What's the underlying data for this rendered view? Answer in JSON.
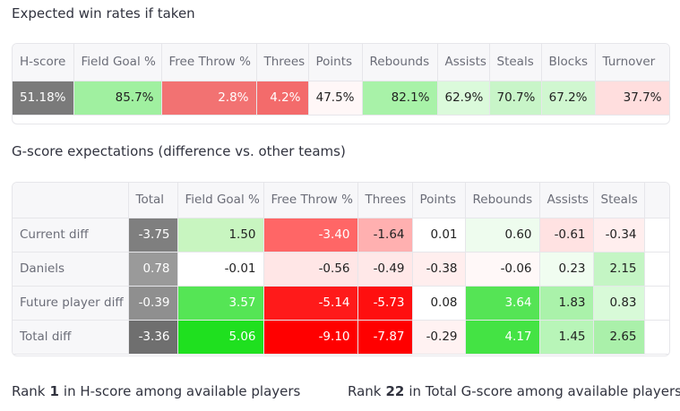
{
  "win_rates": {
    "title": "Expected win rates if taken",
    "headers": [
      "H-score",
      "Field Goal %",
      "Free Throw %",
      "Threes",
      "Points",
      "Rebounds",
      "Assists",
      "Steals",
      "Blocks",
      "Turnover"
    ],
    "row": [
      "51.18%",
      "85.7%",
      "2.8%",
      "4.2%",
      "47.5%",
      "82.1%",
      "62.9%",
      "70.7%",
      "67.2%",
      "37.7%"
    ],
    "colors": [
      "#7a7a7a",
      "#a0f0a0",
      "#f27272",
      "#f36b6b",
      "#fff7f7",
      "#a8f2a8",
      "#dbfadb",
      "#c8f5c8",
      "#d0f7d0",
      "#ffdede"
    ]
  },
  "g_scores": {
    "title": "G-score expectations (difference vs. other teams)",
    "headers": [
      "Total",
      "Field Goal %",
      "Free Throw %",
      "Threes",
      "Points",
      "Rebounds",
      "Assists",
      "Steals"
    ],
    "rows": [
      {
        "label": "Current diff",
        "cells": [
          "-3.75",
          "1.50",
          "-3.40",
          "-1.64",
          "0.01",
          "0.60",
          "-0.61",
          "-0.34"
        ],
        "colors": [
          "#7f7f7f",
          "#c8f5c0",
          "#ff6666",
          "#ffb0b0",
          "#ffffff",
          "#eefcee",
          "#ffe2e2",
          "#ffeeee"
        ]
      },
      {
        "label": "Daniels",
        "cells": [
          "0.78",
          "-0.01",
          "-0.56",
          "-0.49",
          "-0.38",
          "-0.06",
          "0.23",
          "2.15"
        ],
        "colors": [
          "#9a9a9a",
          "#ffffff",
          "#ffe6e6",
          "#ffe8e8",
          "#ffeeee",
          "#fff8f8",
          "#f0fdf0",
          "#c4f5c4"
        ]
      },
      {
        "label": "Future player diff",
        "cells": [
          "-0.39",
          "3.57",
          "-5.14",
          "-5.73",
          "0.08",
          "3.64",
          "1.83",
          "0.83"
        ],
        "colors": [
          "#8f8f8f",
          "#55e555",
          "#ff1a1a",
          "#ff0f0f",
          "#ffffff",
          "#55e455",
          "#aaf2aa",
          "#d8fad8"
        ]
      },
      {
        "label": "Total diff",
        "cells": [
          "-3.36",
          "5.06",
          "-9.10",
          "-7.87",
          "-0.29",
          "4.17",
          "1.45",
          "2.65"
        ],
        "colors": [
          "#6f6f6f",
          "#1fe01f",
          "#ff0000",
          "#ff0000",
          "#fff2f2",
          "#44e344",
          "#b8f5b8",
          "#aaf0aa"
        ]
      }
    ]
  },
  "footer": {
    "left": {
      "prefix": "Rank",
      "value": "1",
      "suffix": "in H-score among available players"
    },
    "right": {
      "prefix": "Rank",
      "value": "22",
      "suffix": "in Total G-score among available players"
    }
  }
}
